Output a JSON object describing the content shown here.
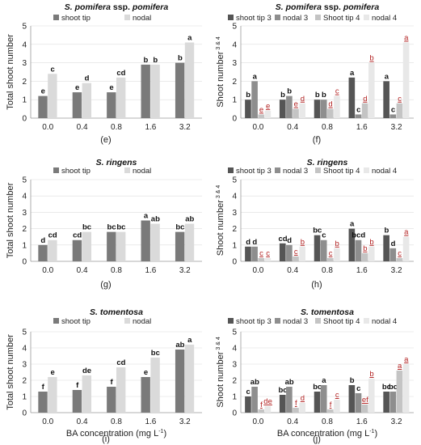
{
  "colors": {
    "shoot_tip_left": "#7a7a7a",
    "nodal_left": "#dadada",
    "shoot_tip_3": "#555555",
    "nodal_3": "#8e8e8e",
    "shoot_tip_4": "#c4c4c4",
    "nodal_4": "#e8e8e8",
    "letter_black": "#111111",
    "letter_red": "#b22222",
    "axis": "#999999",
    "grid": "#dddddd"
  },
  "chart_data": [
    {
      "panel_label": "(e)",
      "type": "bar",
      "title_italic": "S. pomifera",
      "title_rest": " ssp. ",
      "title_italic2": "pomifera",
      "ylabel": "Total shoot number",
      "xlabel": "",
      "categories": [
        "0.0",
        "0.4",
        "0.8",
        "1.6",
        "3.2"
      ],
      "ylim": [
        0,
        5
      ],
      "yticks": [
        "0",
        "1",
        "2",
        "3",
        "4",
        "5"
      ],
      "legend_position": "top",
      "series": [
        {
          "name": "shoot tip",
          "values": [
            1.2,
            1.4,
            1.4,
            2.9,
            3.0
          ],
          "letters": [
            "e",
            "e",
            "e",
            "b",
            "b"
          ]
        },
        {
          "name": "nodal",
          "values": [
            2.4,
            1.9,
            2.2,
            2.9,
            4.1
          ],
          "letters": [
            "c",
            "d",
            "cd",
            "b",
            "a"
          ]
        }
      ]
    },
    {
      "panel_label": "(f)",
      "type": "bar",
      "title_italic": "S. pomifera",
      "title_rest": " ssp. ",
      "title_italic2": "pomifera",
      "ylabel": "Shoot number",
      "ylabel_sup": "3 & 4",
      "xlabel": "",
      "categories": [
        "0.0",
        "0.4",
        "0.8",
        "1.6",
        "3.2"
      ],
      "ylim": [
        0,
        5
      ],
      "yticks": [
        "0",
        "1",
        "2",
        "3",
        "4",
        "5"
      ],
      "legend_position": "top",
      "series": [
        {
          "name": "shoot tip 3",
          "values": [
            1.0,
            1.0,
            1.0,
            2.2,
            2.0
          ],
          "letters": [
            "b",
            "b",
            "b",
            "a",
            "a"
          ]
        },
        {
          "name": "nodal 3",
          "values": [
            2.0,
            1.2,
            1.0,
            0.2,
            0.2
          ],
          "letters": [
            "a",
            "b",
            "b",
            "c",
            "c"
          ]
        },
        {
          "name": "Shoot tip 4",
          "values": [
            0.2,
            0.5,
            0.5,
            0.8,
            0.8
          ],
          "letters": [
            "e",
            "e",
            "d",
            "d",
            "c"
          ]
        },
        {
          "name": "nodal 4",
          "values": [
            0.4,
            0.8,
            1.2,
            3.0,
            4.1
          ],
          "letters": [
            "e",
            "d",
            "c",
            "b",
            "a"
          ]
        }
      ]
    },
    {
      "panel_label": "(g)",
      "type": "bar",
      "title_italic": "S. ringens",
      "title_rest": "",
      "title_italic2": "",
      "ylabel": "Total shoot number",
      "xlabel": "",
      "categories": [
        "0.0",
        "0.4",
        "0.8",
        "1.6",
        "3.2"
      ],
      "ylim": [
        0,
        5
      ],
      "yticks": [
        "0",
        "1",
        "2",
        "3",
        "4",
        "5"
      ],
      "legend_position": "top",
      "series": [
        {
          "name": "shoot tip",
          "values": [
            1.0,
            1.3,
            1.8,
            2.5,
            1.8
          ],
          "letters": [
            "d",
            "cd",
            "bc",
            "a",
            "bc"
          ]
        },
        {
          "name": "nodal",
          "values": [
            1.3,
            1.8,
            1.8,
            2.3,
            2.3
          ],
          "letters": [
            "cd",
            "bc",
            "bc",
            "ab",
            "ab"
          ]
        }
      ]
    },
    {
      "panel_label": "(h)",
      "type": "bar",
      "title_italic": "S. ringens",
      "title_rest": "",
      "title_italic2": "",
      "ylabel": "Shoot number",
      "ylabel_sup": "3 & 4",
      "xlabel": "",
      "categories": [
        "0.0",
        "0.4",
        "0.8",
        "1.6",
        "3.2"
      ],
      "ylim": [
        0,
        5
      ],
      "yticks": [
        "0",
        "1",
        "2",
        "3",
        "4",
        "5"
      ],
      "legend_position": "top",
      "series": [
        {
          "name": "shoot tip 3",
          "values": [
            0.9,
            1.1,
            1.6,
            2.0,
            1.6
          ],
          "letters": [
            "d",
            "cd",
            "bc",
            "a",
            "b"
          ]
        },
        {
          "name": "nodal 3",
          "values": [
            0.9,
            1.0,
            1.3,
            1.3,
            0.8
          ],
          "letters": [
            "d",
            "d",
            "c",
            "bcd",
            "d"
          ]
        },
        {
          "name": "Shoot tip 4",
          "values": [
            0.2,
            0.3,
            0.2,
            0.5,
            0.2
          ],
          "letters": [
            "c",
            "c",
            "c",
            "b",
            "c"
          ]
        },
        {
          "name": "nodal 4",
          "values": [
            0.2,
            0.9,
            0.8,
            0.9,
            1.5
          ],
          "letters": [
            "c",
            "b",
            "b",
            "b",
            "a"
          ]
        }
      ]
    },
    {
      "panel_label": "(i)",
      "type": "bar",
      "title_italic": "S. tomentosa",
      "title_rest": "",
      "title_italic2": "",
      "ylabel": "Total shoot number",
      "xlabel": "BA concentration (mg L",
      "xlabel_sup": "-1",
      "xlabel_end": ")",
      "categories": [
        "0.0",
        "0.4",
        "0.8",
        "1.6",
        "3.2"
      ],
      "ylim": [
        0,
        5
      ],
      "yticks": [
        "0",
        "1",
        "2",
        "3",
        "4",
        "5"
      ],
      "legend_position": "top",
      "series": [
        {
          "name": "shoot tip",
          "values": [
            1.3,
            1.4,
            1.6,
            2.2,
            3.9
          ],
          "letters": [
            "f",
            "f",
            "f",
            "e",
            "ab"
          ]
        },
        {
          "name": "nodal",
          "values": [
            2.2,
            2.3,
            2.8,
            3.4,
            4.2
          ],
          "letters": [
            "e",
            "de",
            "cd",
            "bc",
            "a"
          ]
        }
      ]
    },
    {
      "panel_label": "(j)",
      "type": "bar",
      "title_italic": "S. tomentosa",
      "title_rest": "",
      "title_italic2": "",
      "ylabel": "Shoot number",
      "ylabel_sup": "3 & 4",
      "xlabel": "BA concentration (mg L",
      "xlabel_sup": "-1",
      "xlabel_end": ")",
      "categories": [
        "0.0",
        "0.4",
        "0.8",
        "1.6",
        "3.2"
      ],
      "ylim": [
        0,
        5
      ],
      "yticks": [
        "0",
        "1",
        "2",
        "3",
        "4",
        "5"
      ],
      "legend_position": "top",
      "series": [
        {
          "name": "shoot tip 3",
          "values": [
            1.0,
            1.1,
            1.3,
            1.7,
            1.3
          ],
          "letters": [
            "c",
            "bc",
            "bc",
            "b",
            "bc"
          ]
        },
        {
          "name": "nodal 3",
          "values": [
            1.6,
            1.6,
            1.7,
            1.2,
            1.3
          ],
          "letters": [
            "ab",
            "ab",
            "a",
            "c",
            "bc"
          ]
        },
        {
          "name": "Shoot tip 4",
          "values": [
            0.2,
            0.3,
            0.2,
            0.5,
            2.6
          ],
          "letters": [
            "f",
            "f",
            "f",
            "ef",
            "a"
          ]
        },
        {
          "name": "nodal 4",
          "values": [
            0.4,
            0.6,
            0.8,
            2.1,
            3.0
          ],
          "letters": [
            "de",
            "d",
            "c",
            "b",
            "a"
          ]
        }
      ]
    }
  ]
}
